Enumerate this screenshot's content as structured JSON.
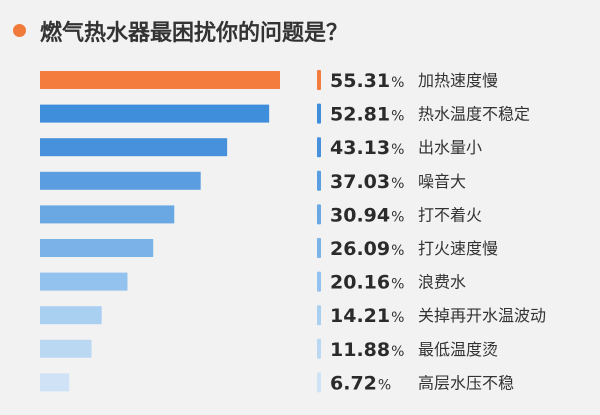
{
  "header": {
    "title": "燃气热水器最困扰你的问题是？",
    "accent_color": "#f07a3a"
  },
  "chart_data": {
    "type": "bar",
    "orientation": "horizontal",
    "title": "燃气热水器最困扰你的问题是？",
    "unit": "%",
    "xlim": [
      0,
      55.31
    ],
    "grid": false,
    "legend": "none",
    "categories": [
      "加热速度慢",
      "热水温度不稳定",
      "出水量小",
      "噪音大",
      "打不着火",
      "打火速度慢",
      "浪费水",
      "关掉再开水温波动",
      "最低温度烫",
      "高层水压不稳"
    ],
    "values": [
      55.31,
      52.81,
      43.13,
      37.03,
      30.94,
      26.09,
      20.16,
      14.21,
      11.88,
      6.72
    ],
    "value_labels": [
      "55.31",
      "52.81",
      "43.13",
      "37.03",
      "30.94",
      "26.09",
      "20.16",
      "14.21",
      "11.88",
      "6.72"
    ],
    "bar_colors": [
      "#f47c3c",
      "#3f8edc",
      "#4690dc",
      "#5a9de0",
      "#6aa8e4",
      "#7bb3e8",
      "#93c2ee",
      "#a9cff1",
      "#bbd8f3",
      "#cfe2f6"
    ],
    "marker_colors": [
      "#f47c3c",
      "#3f8edc",
      "#4690dc",
      "#5a9de0",
      "#6aa8e4",
      "#7bb3e8",
      "#93c2ee",
      "#a9cff1",
      "#bbd8f3",
      "#cfe2f6"
    ]
  }
}
